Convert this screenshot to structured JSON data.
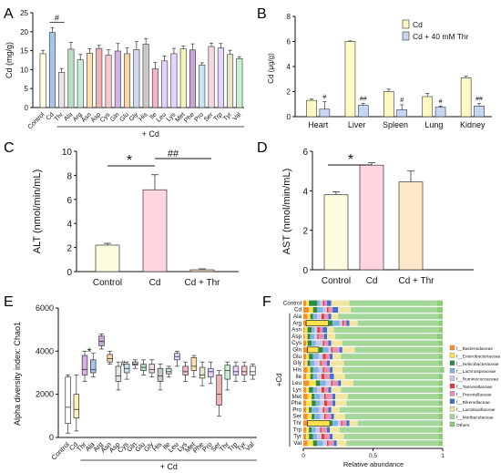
{
  "figure": {
    "panel_labels": [
      "A",
      "B",
      "C",
      "D",
      "E",
      "F"
    ],
    "shared": {
      "group_label": "+ Cd"
    }
  },
  "colors": {
    "control": "#fffde0",
    "cd": "#ffd6df",
    "thr": "#ffe7c8",
    "cd_b": "#fff9c4",
    "thr_b": "#c7d6f2",
    "box_palette": [
      "#ffffff",
      "#f7f2b8",
      "#d7b1e6",
      "#a6c6e9",
      "#c9a5d9",
      "#f7d6a8",
      "#e5e5e5",
      "#c8e6f0",
      "#cdd8f3",
      "#b7dfc5",
      "#f6d8e3",
      "#c9c9c9",
      "#c8eed6",
      "#e6d3ff",
      "#f6b5c8",
      "#ffe0b3",
      "#e8e8c8",
      "#e2d4ff",
      "#f3b2b2",
      "#c9f0d0",
      "#e9d5ff",
      "#f7c8cf"
    ]
  },
  "chart_data": [
    {
      "id": "A",
      "type": "bar",
      "ylabel": "Cd (mg/g)",
      "ylim": [
        0,
        25
      ],
      "yticks": [
        0,
        5,
        10,
        15,
        20,
        25
      ],
      "categories": [
        "Control",
        "Cd",
        "Thr",
        "Ala",
        "Arg",
        "Asn",
        "Asp",
        "Cys",
        "Gln",
        "Glu",
        "Gly",
        "His",
        "Ile",
        "Leu",
        "Lys",
        "Met",
        "Phe",
        "Pro",
        "Ser",
        "Trp",
        "Tyr",
        "Val"
      ],
      "values": [
        14.2,
        19.8,
        9.3,
        15.4,
        12.6,
        14.3,
        15.6,
        13.8,
        14.9,
        14.2,
        15.3,
        16.7,
        10.2,
        12.3,
        14.2,
        15.5,
        15.2,
        11.2,
        16.1,
        15.7,
        14.0,
        12.9
      ],
      "errors": [
        0.9,
        1.3,
        1.0,
        1.8,
        1.4,
        1.2,
        0.8,
        1.5,
        2.0,
        1.5,
        2.1,
        1.5,
        1.7,
        1.3,
        1.4,
        0.7,
        1.6,
        0.6,
        0.9,
        1.2,
        1.1,
        0.5
      ],
      "annotations": [
        {
          "text": "#",
          "between": [
            "Cd",
            "Thr"
          ]
        }
      ],
      "group_label": "+ Cd"
    },
    {
      "id": "B",
      "type": "bar",
      "ylabel": "Cd (μg/g)",
      "ylim": [
        0,
        8
      ],
      "yticks": [
        0,
        2,
        4,
        6,
        8
      ],
      "categories": [
        "Heart",
        "Liver",
        "Spleen",
        "Lung",
        "Kidney"
      ],
      "series": [
        {
          "name": "Cd",
          "values": [
            1.3,
            6.0,
            2.0,
            1.6,
            3.1
          ],
          "errors": [
            0.1,
            0.05,
            0.2,
            0.25,
            0.12
          ]
        },
        {
          "name": "Cd + 40 mM Thr",
          "values": [
            0.6,
            0.9,
            0.55,
            0.75,
            0.85
          ],
          "errors": [
            0.6,
            0.15,
            0.4,
            0.1,
            0.2
          ]
        }
      ],
      "annotations": [
        {
          "text": "#",
          "category": "Heart"
        },
        {
          "text": "##",
          "category": "Liver"
        },
        {
          "text": "#",
          "category": "Spleen"
        },
        {
          "text": "#",
          "category": "Lung"
        },
        {
          "text": "##",
          "category": "Kidney"
        }
      ],
      "legend_position": "top-right"
    },
    {
      "id": "C",
      "type": "bar",
      "ylabel": "ALT (nmol/min/mL)",
      "ylim": [
        0,
        10
      ],
      "yticks": [
        0,
        2,
        4,
        6,
        8,
        10
      ],
      "categories": [
        "Control",
        "Cd",
        "Cd + Thr"
      ],
      "values": [
        2.2,
        6.8,
        0.15
      ],
      "errors": [
        0.15,
        1.25,
        0.08
      ],
      "annotations": [
        {
          "text": "*",
          "between": [
            "Control",
            "Cd"
          ]
        },
        {
          "text": "##",
          "between": [
            "Cd",
            "Cd + Thr"
          ]
        }
      ]
    },
    {
      "id": "D",
      "type": "bar",
      "ylabel": "AST (nmol/min/mL)",
      "ylim": [
        0,
        6
      ],
      "yticks": [
        0,
        2,
        4,
        6
      ],
      "categories": [
        "Control",
        "Cd",
        "Cd + Thr"
      ],
      "values": [
        3.8,
        5.3,
        4.45
      ],
      "errors": [
        0.15,
        0.12,
        0.55
      ],
      "annotations": [
        {
          "text": "*",
          "between": [
            "Control",
            "Cd"
          ]
        }
      ]
    },
    {
      "id": "E",
      "type": "box",
      "ylabel": "Alpha diversity  index: Chao1",
      "ylim": [
        0,
        6000
      ],
      "yticks": [
        0,
        2000,
        4000,
        6000
      ],
      "categories": [
        "Control",
        "Cd",
        "Thr",
        "Ala",
        "Arg",
        "Asn",
        "Asp",
        "Cys",
        "Gln",
        "Glu",
        "Gly",
        "His",
        "Ile",
        "Leu",
        "Lys",
        "Met",
        "Phe",
        "Pro",
        "Ser",
        "Thr",
        "Trp",
        "Tyr",
        "Val"
      ],
      "boxes": [
        {
          "min": 200,
          "q1": 650,
          "median": 1400,
          "q3": 2800,
          "max": 2900
        },
        {
          "min": 300,
          "q1": 900,
          "median": 1300,
          "q3": 2000,
          "max": 2900
        },
        {
          "min": 2600,
          "q1": 2900,
          "median": 3150,
          "q3": 3800,
          "max": 4000
        },
        {
          "min": 2800,
          "q1": 3000,
          "median": 3150,
          "q3": 3600,
          "max": 3900
        },
        {
          "min": 4100,
          "q1": 4250,
          "median": 4450,
          "q3": 4700,
          "max": 4800
        },
        {
          "min": 3400,
          "q1": 3500,
          "median": 3650,
          "q3": 3850,
          "max": 4000
        },
        {
          "min": 2200,
          "q1": 2600,
          "median": 2850,
          "q3": 3300,
          "max": 3500
        },
        {
          "min": 2700,
          "q1": 3000,
          "median": 3200,
          "q3": 3400,
          "max": 3500
        },
        {
          "min": 3200,
          "q1": 3350,
          "median": 3400,
          "q3": 3500,
          "max": 3600
        },
        {
          "min": 2900,
          "q1": 3100,
          "median": 3250,
          "q3": 3400,
          "max": 3600
        },
        {
          "min": 2800,
          "q1": 3000,
          "median": 3150,
          "q3": 3400,
          "max": 3600
        },
        {
          "min": 2200,
          "q1": 2600,
          "median": 2850,
          "q3": 3200,
          "max": 3400
        },
        {
          "min": 2800,
          "q1": 2950,
          "median": 3050,
          "q3": 3200,
          "max": 3300
        },
        {
          "min": 3300,
          "q1": 3600,
          "median": 3750,
          "q3": 3900,
          "max": 4000
        },
        {
          "min": 2600,
          "q1": 2900,
          "median": 3050,
          "q3": 3300,
          "max": 3500
        },
        {
          "min": 2800,
          "q1": 3100,
          "median": 3300,
          "q3": 3700,
          "max": 3800
        },
        {
          "min": 2400,
          "q1": 2750,
          "median": 2900,
          "q3": 3250,
          "max": 3500
        },
        {
          "min": 2500,
          "q1": 2800,
          "median": 3050,
          "q3": 3200,
          "max": 3500
        },
        {
          "min": 1000,
          "q1": 1500,
          "median": 2000,
          "q3": 2900,
          "max": 3100
        },
        {
          "min": 2200,
          "q1": 2700,
          "median": 3100,
          "q3": 3350,
          "max": 3500
        },
        {
          "min": 2600,
          "q1": 2900,
          "median": 3050,
          "q3": 3300,
          "max": 3500
        },
        {
          "min": 2600,
          "q1": 2900,
          "median": 3050,
          "q3": 3300,
          "max": 3500
        },
        {
          "min": 2700,
          "q1": 2900,
          "median": 3050,
          "q3": 3300,
          "max": 3400
        }
      ],
      "annotations": [
        {
          "text": "#",
          "category": "Asp"
        },
        {
          "text": "*",
          "category": "Thr"
        }
      ],
      "group_label": "+ Cd"
    },
    {
      "id": "F",
      "type": "bar",
      "orientation": "horizontal",
      "stacked": true,
      "xlabel": "Relative abundance",
      "xlim": [
        0,
        1
      ],
      "xticks": [
        0,
        0.5,
        1
      ],
      "categories": [
        "Control",
        "Cd",
        "Ala",
        "Arg",
        "Asn",
        "Asp",
        "Cys",
        "Gln",
        "Glu",
        "Gly",
        "His",
        "Ile",
        "Leu",
        "Lys",
        "Met",
        "Phe",
        "Pro",
        "Ser",
        "Thr",
        "Trp",
        "Tyr",
        "Val"
      ],
      "legend": [
        "f__Bacteroidaceae",
        "f__Enterobacteriaceae",
        "f__Helicobacteraceae",
        "f__Lachnospiraceae",
        "f__Ruminococcaceae",
        "f__Tannerellaceae",
        "f__Prevotellaceae",
        "f__Rikenellaceae",
        "f__Lactobacillaceae",
        "f__Muribaculaceae",
        "Others"
      ],
      "legend_colors": [
        "#ff8c2a",
        "#ffe24d",
        "#2e8b3d",
        "#7fb3e8",
        "#c8c8e8",
        "#e53b3b",
        "#e890b0",
        "#3a6fd8",
        "#f3e6a0",
        "#a3d89a",
        "#8fcc7a"
      ],
      "group_label": "+Cd"
    }
  ]
}
